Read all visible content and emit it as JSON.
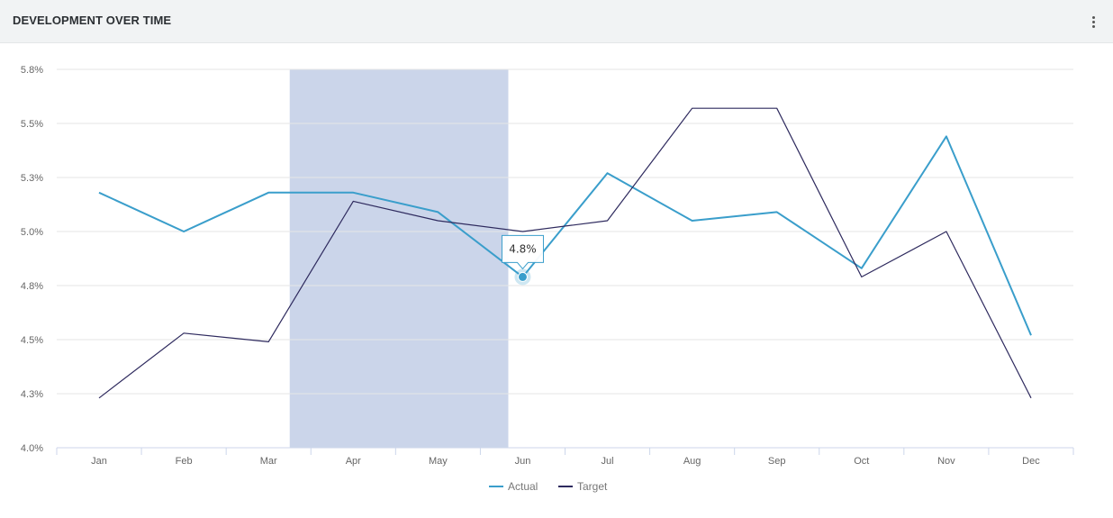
{
  "widget": {
    "title": "DEVELOPMENT OVER TIME",
    "menu_icon": "vertical-ellipsis-icon"
  },
  "chart_data": {
    "type": "line",
    "categories": [
      "Jan",
      "Feb",
      "Mar",
      "Apr",
      "May",
      "Jun",
      "Jul",
      "Aug",
      "Sep",
      "Oct",
      "Nov",
      "Dec"
    ],
    "y_tick_labels": [
      "4.0%",
      "4.3%",
      "4.5%",
      "4.8%",
      "5.0%",
      "5.3%",
      "5.5%",
      "5.8%"
    ],
    "y_ticks": [
      4.0,
      4.25,
      4.5,
      4.75,
      5.0,
      5.25,
      5.5,
      5.75
    ],
    "ylim": [
      4.0,
      5.75
    ],
    "grid": true,
    "legend_position": "bottom-center",
    "highlight_band": {
      "from": "Mar",
      "to": "May",
      "color": "#cbd5ea"
    },
    "series": [
      {
        "name": "Actual",
        "color": "#3a9ecb",
        "values": [
          5.18,
          5.0,
          5.18,
          5.18,
          5.09,
          4.79,
          5.27,
          5.05,
          5.09,
          4.83,
          5.44,
          4.52
        ]
      },
      {
        "name": "Target",
        "color": "#2e2a5e",
        "values": [
          4.23,
          4.53,
          4.49,
          5.14,
          5.05,
          5.0,
          5.05,
          5.57,
          5.57,
          4.79,
          5.0,
          4.23
        ]
      }
    ],
    "tooltip": {
      "category": "Jun",
      "series": "Actual",
      "label": "4.8%"
    }
  }
}
